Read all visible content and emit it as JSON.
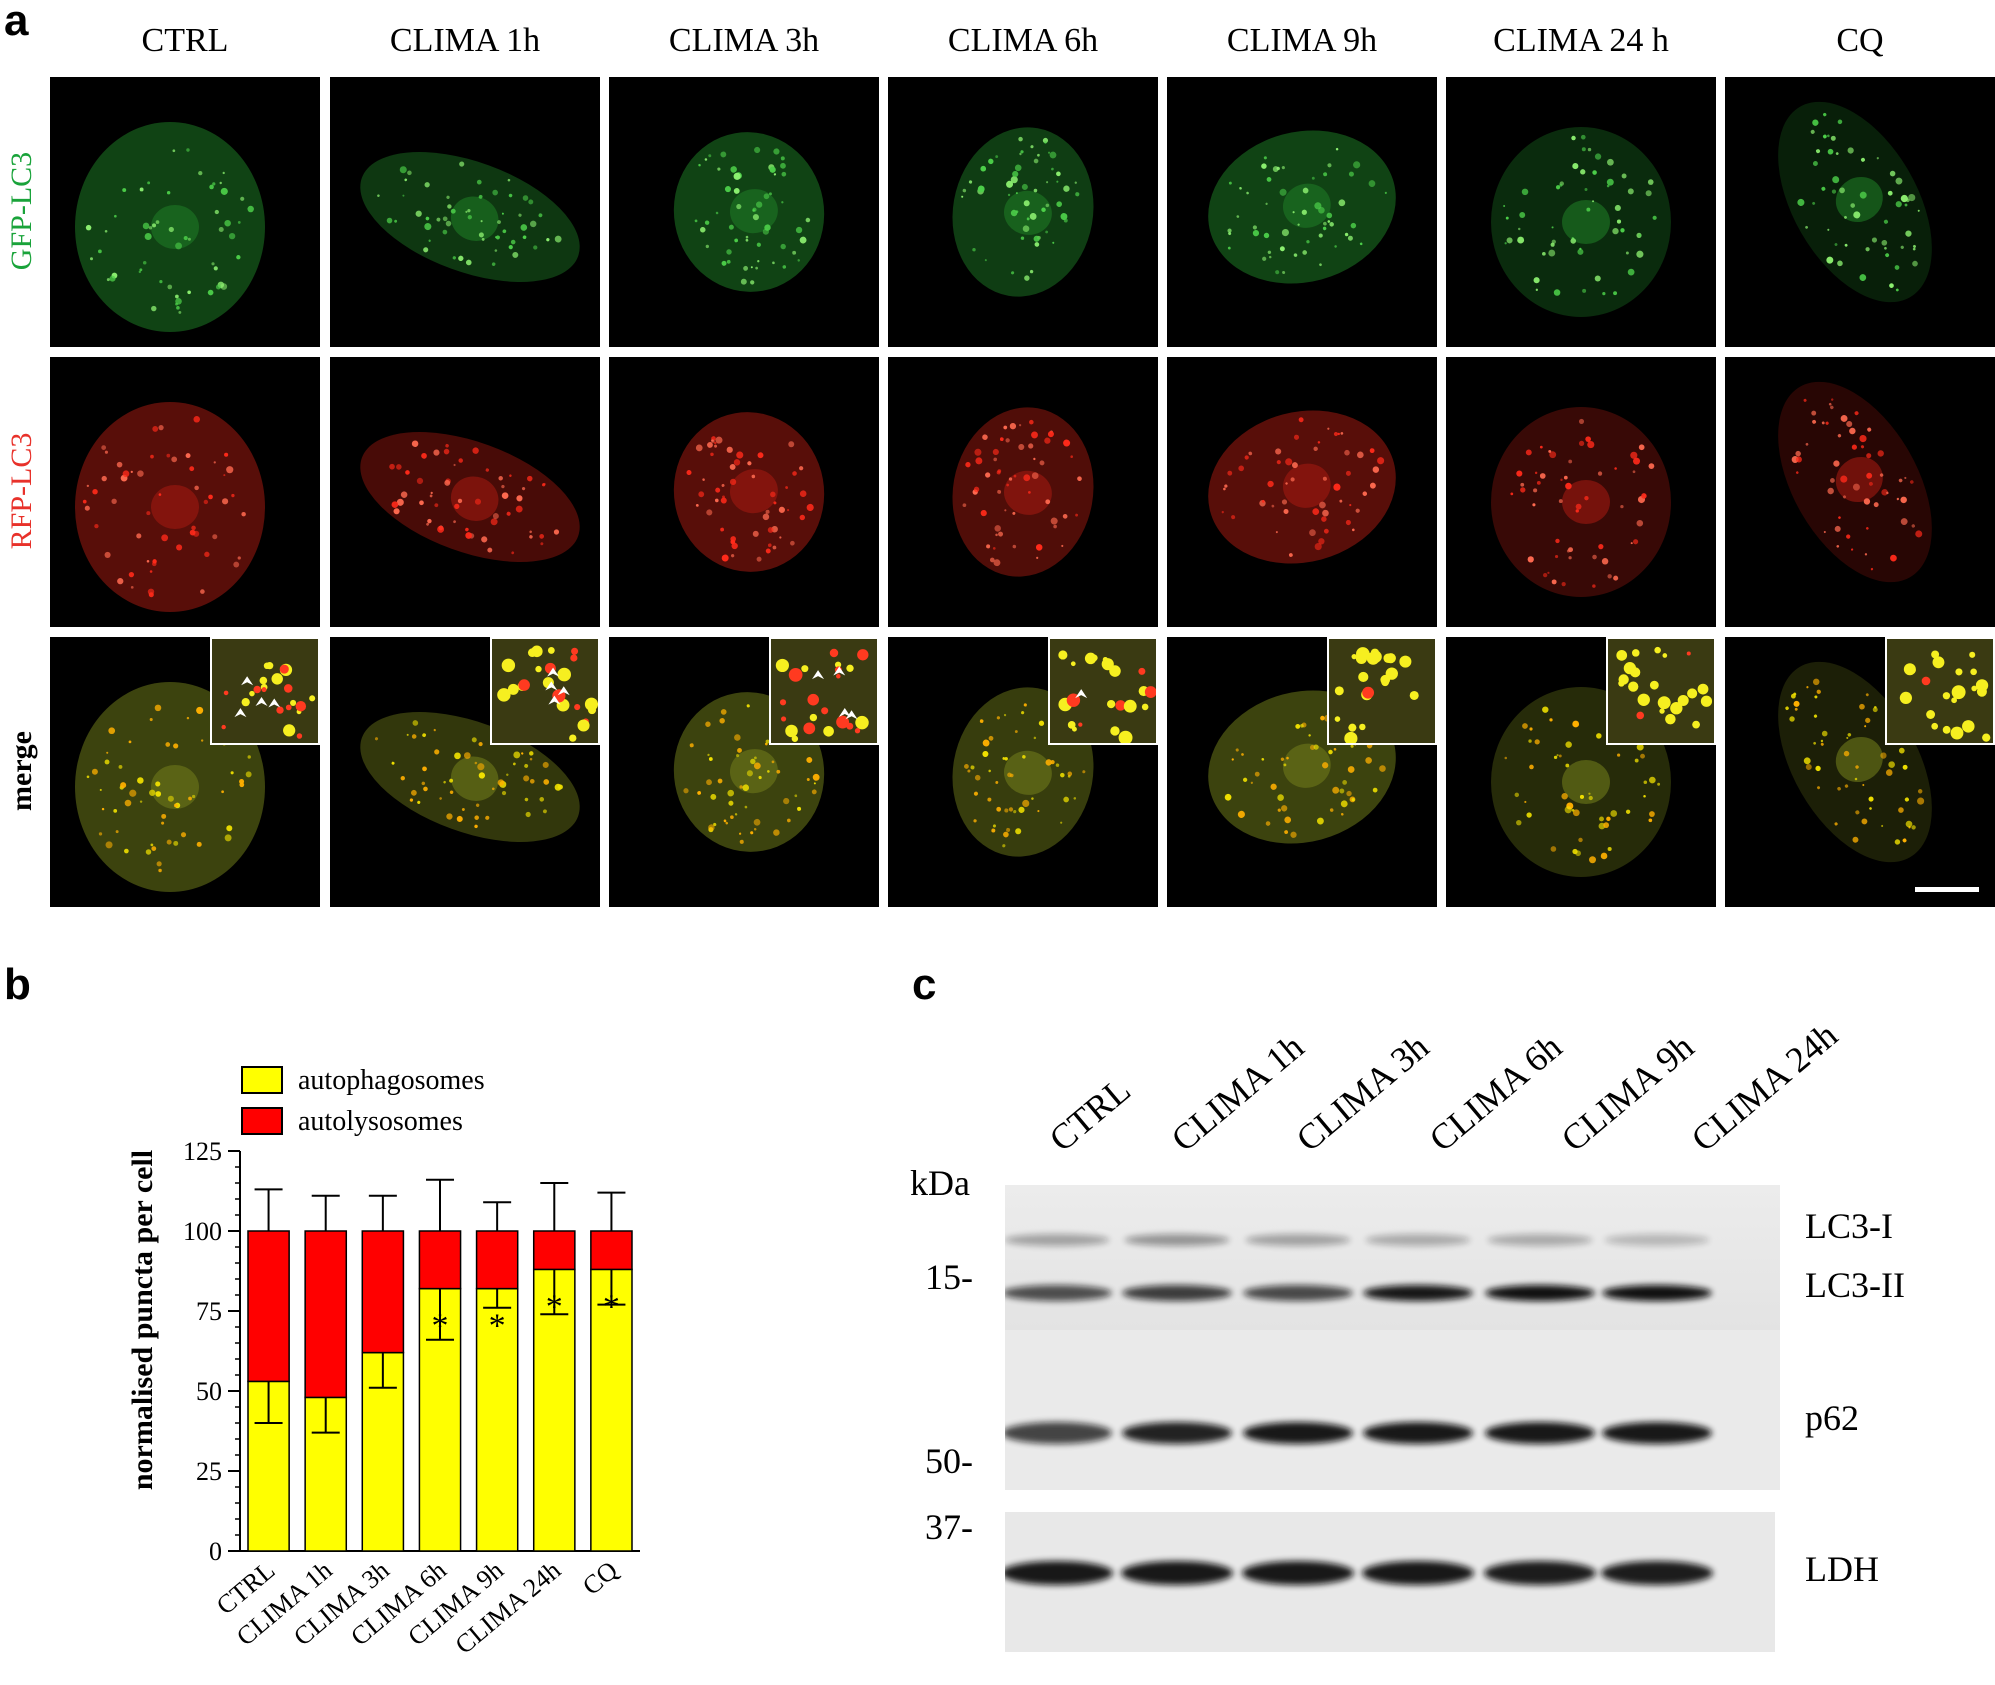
{
  "figure": {
    "panel_a": {
      "letter": "a",
      "columns": [
        "CTRL",
        "CLIMA 1h",
        "CLIMA 3h",
        "CLIMA 6h",
        "CLIMA 9h",
        "CLIMA 24 h",
        "CQ"
      ],
      "rows": [
        {
          "label": "GFP-LC3",
          "color": "#19a33a"
        },
        {
          "label": "RFP-LC3",
          "color": "#e8312a"
        },
        {
          "label": "merge",
          "color": "#000000"
        }
      ]
    },
    "panel_b": {
      "letter": "b",
      "legend": [
        {
          "label": "autophagosomes",
          "color": "#ffff00"
        },
        {
          "label": "autolysosomes",
          "color": "#ff0000"
        }
      ]
    },
    "panel_c": {
      "letter": "c",
      "kda_label": "kDa",
      "lanes": [
        "CTRL",
        "CLIMA 1h",
        "CLIMA 3h",
        "CLIMA 6h",
        "CLIMA 9h",
        "CLIMA 24h"
      ],
      "markers": [
        "15-",
        "50-",
        "37-"
      ],
      "bands": [
        "LC3-I",
        "LC3-II",
        "p62",
        "LDH"
      ]
    }
  },
  "chart_data": {
    "type": "bar",
    "stacked": true,
    "categories": [
      "CTRL",
      "CLIMA 1h",
      "CLIMA 3h",
      "CLIMA 6h",
      "CLIMA 9h",
      "CLIMA 24h",
      "CQ"
    ],
    "series": [
      {
        "name": "autophagosomes",
        "color": "#ffff00",
        "values": [
          53,
          48,
          62,
          82,
          82,
          88,
          88
        ],
        "error": [
          13,
          11,
          11,
          16,
          6,
          14,
          11
        ]
      },
      {
        "name": "autolysosomes",
        "color": "#ff0000",
        "values": [
          47,
          52,
          38,
          18,
          18,
          12,
          12
        ],
        "error": [
          13,
          11,
          11,
          16,
          9,
          15,
          12
        ]
      }
    ],
    "significance": [
      "",
      "",
      "",
      "*",
      "*",
      "*",
      "*"
    ],
    "ylabel": "normalised  puncta  per cell",
    "xlabel": "",
    "ylim": [
      0,
      125
    ],
    "yticks": [
      0,
      25,
      50,
      75,
      100,
      125
    ],
    "legend_position": "top"
  }
}
